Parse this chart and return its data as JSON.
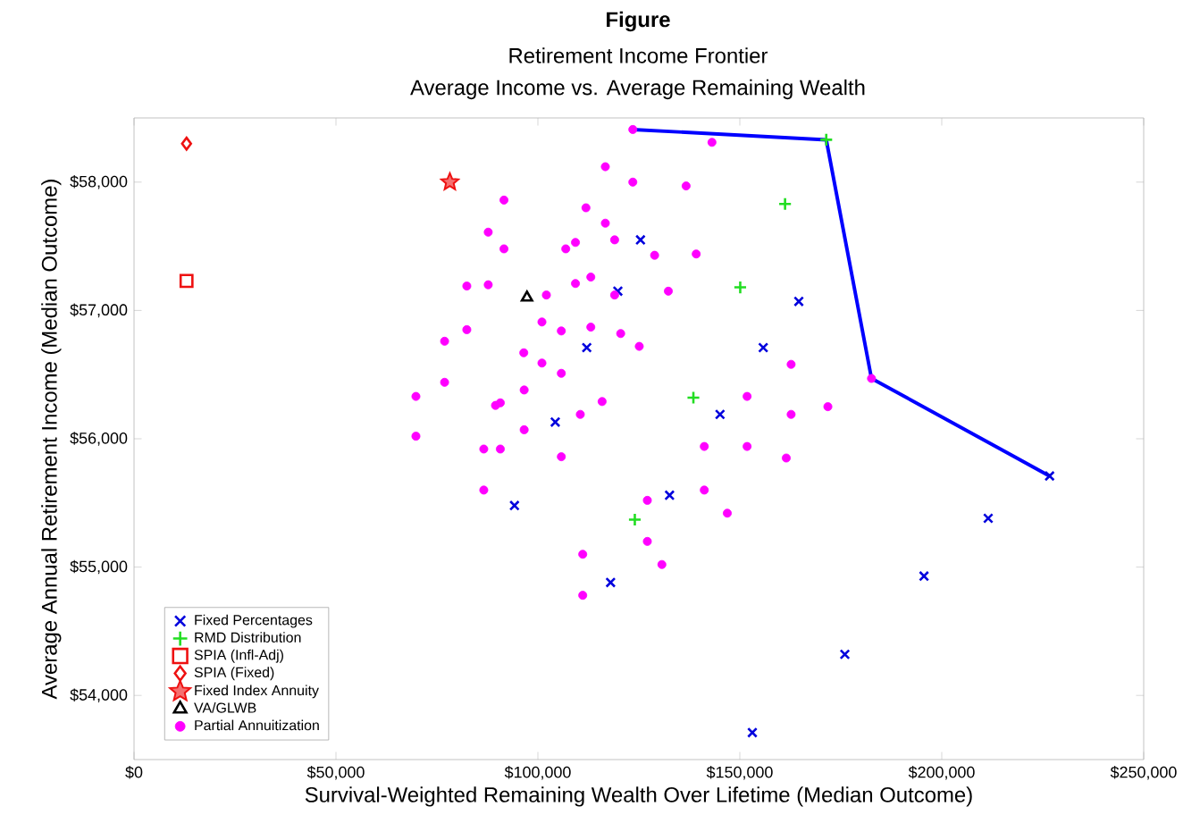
{
  "chart_data": {
    "type": "scatter",
    "title": "Figure",
    "subtitle": "Retirement Income Frontier",
    "annotations": [
      "Average Income vs. Average Remaining Wealth"
    ],
    "xlabel": "Survival-Weighted Remaining Wealth Over Lifetime (Median Outcome)",
    "ylabel": "Average Annual Retirement Income (Median Outcome)",
    "xlim": [
      0,
      250000
    ],
    "ylim": [
      53500,
      58500
    ],
    "xticks": [
      {
        "value": 0,
        "label": "$0"
      },
      {
        "value": 50000,
        "label": "$50,000"
      },
      {
        "value": 100000,
        "label": "$100,000"
      },
      {
        "value": 150000,
        "label": "$150,000"
      },
      {
        "value": 200000,
        "label": "$200,000"
      },
      {
        "value": 250000,
        "label": "$250,000"
      }
    ],
    "yticks": [
      {
        "value": 54000,
        "label": "$54,000"
      },
      {
        "value": 55000,
        "label": "$55,000"
      },
      {
        "value": 56000,
        "label": "$56,000"
      },
      {
        "value": 57000,
        "label": "$57,000"
      },
      {
        "value": 58000,
        "label": "$58,000"
      }
    ],
    "grid": false,
    "legend": "bottom left",
    "series": [
      {
        "type": "line",
        "marker": "none",
        "color": "#0000ff",
        "x": [
          123500,
          171400,
          182600,
          226700
        ],
        "values": [
          58410,
          58330,
          56470,
          55710
        ]
      },
      {
        "name": "Fixed Percentages",
        "marker": "cross",
        "color": "#0000dd",
        "x": [
          112100,
          104300,
          119800,
          125400,
          164600,
          155800,
          145100,
          94200,
          118000,
          132600,
          226700,
          211500,
          195600,
          176000,
          153100
        ],
        "values": [
          56710,
          56130,
          57150,
          57550,
          57070,
          56710,
          56190,
          55480,
          54880,
          55560,
          55710,
          55380,
          54930,
          54320,
          53710
        ]
      },
      {
        "name": "RMD Distribution",
        "marker": "plus",
        "color": "#22dd22",
        "x": [
          171400,
          161200,
          150100,
          138500,
          124000
        ],
        "values": [
          58330,
          57830,
          57180,
          56320,
          55370
        ]
      },
      {
        "name": "SPIA (Infl-Adj)",
        "marker": "square",
        "color": "#ee1111",
        "x": [
          13000
        ],
        "values": [
          57230
        ]
      },
      {
        "name": "SPIA (Fixed)",
        "marker": "diamond",
        "color": "#ee1111",
        "x": [
          13000
        ],
        "values": [
          58300
        ]
      },
      {
        "name": "Fixed Index Annuity",
        "marker": "star",
        "color": "#ee1111",
        "x": [
          78200
        ],
        "values": [
          58000
        ]
      },
      {
        "name": "VA/GLWB",
        "marker": "triangle",
        "color": "#000000",
        "x": [
          97300
        ],
        "values": [
          57100
        ]
      },
      {
        "name": "Partial Annuitization",
        "marker": "circle",
        "color": "#ff00ff",
        "x": [
          123500,
          116700,
          123500,
          91600,
          111900,
          116700,
          87700,
          119000,
          91600,
          106900,
          109300,
          82400,
          87700,
          102100,
          109300,
          113100,
          101000,
          105800,
          113100,
          120500,
          125100,
          82400,
          76900,
          96500,
          101000,
          105800,
          76900,
          69800,
          96600,
          89500,
          90700,
          115900,
          110500,
          96600,
          69800,
          86600,
          90700,
          105800,
          143100,
          136700,
          128900,
          139200,
          119000,
          132300,
          162700,
          151800,
          162700,
          171800,
          141200,
          151800,
          161500,
          141200,
          146900,
          127100,
          127100,
          111100,
          130700,
          111100,
          86600,
          182600
        ],
        "values": [
          58410,
          58120,
          58000,
          57860,
          57800,
          57680,
          57610,
          57550,
          57480,
          57480,
          57530,
          57190,
          57200,
          57120,
          57210,
          57260,
          56910,
          56840,
          56870,
          56820,
          56720,
          56850,
          56760,
          56670,
          56590,
          56510,
          56440,
          56330,
          56380,
          56260,
          56280,
          56290,
          56190,
          56070,
          56020,
          55920,
          55920,
          55860,
          58310,
          57970,
          57430,
          57440,
          57120,
          57150,
          56580,
          56330,
          56190,
          56250,
          55940,
          55940,
          55850,
          55600,
          55420,
          55520,
          55200,
          55100,
          55020,
          54780,
          55600,
          56470
        ]
      }
    ]
  }
}
